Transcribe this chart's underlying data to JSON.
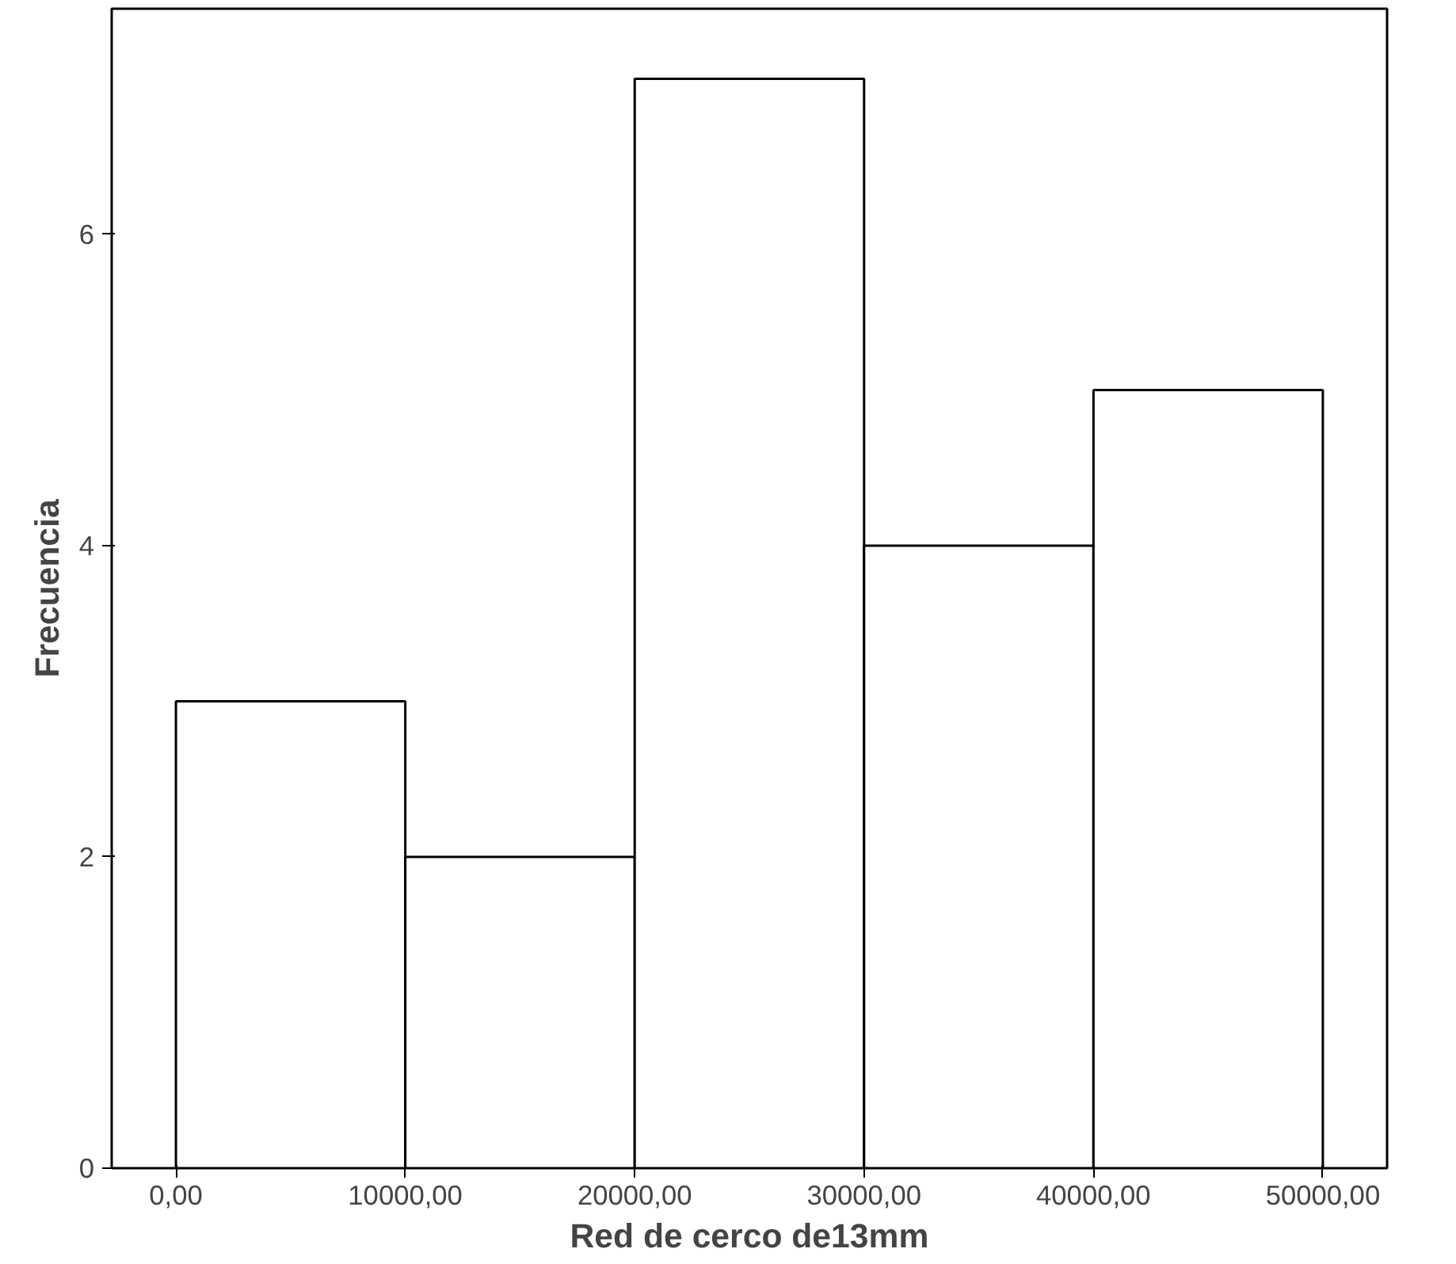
{
  "chart_data": {
    "type": "histogram",
    "xlabel": "Red de cerco de13mm",
    "ylabel": "Frecuencia",
    "bins": [
      0,
      10000,
      20000,
      30000,
      40000,
      50000
    ],
    "values": [
      3,
      2,
      7,
      4,
      5
    ],
    "color": "#ffffff",
    "xlim": [
      -2800,
      52800
    ],
    "ylim": [
      0,
      7.45
    ],
    "xticks": [
      {
        "value": 0,
        "label": "0,00"
      },
      {
        "value": 10000,
        "label": "10000,00"
      },
      {
        "value": 20000,
        "label": "20000,00"
      },
      {
        "value": 30000,
        "label": "30000,00"
      },
      {
        "value": 40000,
        "label": "40000,00"
      },
      {
        "value": 50000,
        "label": "50000,00"
      }
    ],
    "yticks": [
      0,
      2,
      4,
      6
    ],
    "grid": false
  }
}
